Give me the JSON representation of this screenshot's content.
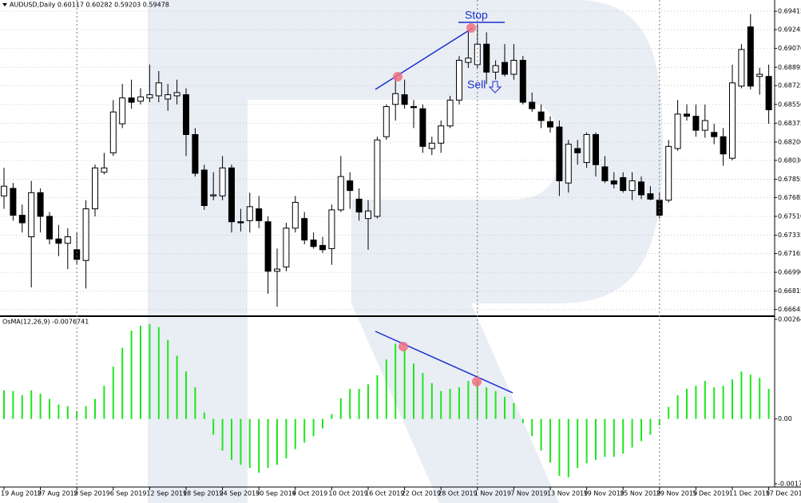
{
  "chart_data": [
    {
      "type": "candlestick",
      "title": "AUDUSD,Daily  0.60117 0.60282 0.59203 0.59478",
      "annotations": [
        "Stop",
        "Sell"
      ],
      "up_color": "#ffffff",
      "down_color": "#000000",
      "ylim": [
        0.6659,
        0.6952
      ],
      "yticks": [
        0.69415,
        0.69245,
        {
          "value": 0.6907,
          "label": "0.69070"
        },
        0.68895,
        0.68725,
        {
          "value": 0.6855,
          "label": "0.68550"
        },
        0.68375,
        {
          "value": 0.682,
          "label": "0.68200"
        },
        {
          "value": 0.6803,
          "label": "0.68030"
        },
        0.67855,
        0.67685,
        {
          "value": 0.6751,
          "label": "0.67510"
        },
        0.67335,
        0.67165,
        {
          "value": 0.6699,
          "label": "0.66990"
        },
        0.66815,
        0.66645
      ],
      "open": [
        0.677,
        0.6777,
        0.6752,
        0.6732,
        0.6773,
        0.6751,
        0.673,
        0.6726,
        0.672,
        0.671,
        0.6758,
        0.6792,
        0.681,
        0.6837,
        0.6861,
        0.6858,
        0.6861,
        0.6863,
        0.686,
        0.6863,
        0.6864,
        0.6827,
        0.6794,
        0.677,
        0.677,
        0.6796,
        0.6746,
        0.6747,
        0.6758,
        0.6746,
        0.67,
        0.6704,
        0.674,
        0.6749,
        0.6729,
        0.6724,
        0.6721,
        0.6757,
        0.6784,
        0.6767,
        0.6749,
        0.6751,
        0.6825,
        0.6855,
        0.6864,
        0.6853,
        0.6851,
        0.6814,
        0.6819,
        0.6835,
        0.6859,
        0.6894,
        0.6892,
        0.6911,
        0.6885,
        0.6894,
        0.6883,
        0.6896,
        0.6857,
        0.6848,
        0.6839,
        0.6834,
        0.6782,
        0.6814,
        0.6801,
        0.6827,
        0.6797,
        0.6784,
        0.6787,
        0.6775,
        0.6783,
        0.6772,
        0.6766,
        0.6766,
        0.6814,
        0.6846,
        0.6844,
        0.6831,
        0.6829,
        0.6825,
        0.6805,
        0.6872,
        0.6927,
        0.6881,
        0.6881
      ],
      "high": [
        0.6796,
        0.6782,
        0.6762,
        0.6784,
        0.6777,
        0.6755,
        0.6743,
        0.674,
        0.6736,
        0.6766,
        0.6799,
        0.681,
        0.6859,
        0.6874,
        0.6878,
        0.687,
        0.6892,
        0.6886,
        0.6874,
        0.6878,
        0.687,
        0.6833,
        0.6799,
        0.6792,
        0.6807,
        0.6799,
        0.6758,
        0.6773,
        0.677,
        0.6751,
        0.6721,
        0.6745,
        0.677,
        0.6755,
        0.6736,
        0.6732,
        0.6762,
        0.6807,
        0.6792,
        0.6777,
        0.6766,
        0.6825,
        0.6855,
        0.6881,
        0.6878,
        0.6859,
        0.6855,
        0.6825,
        0.684,
        0.6863,
        0.69,
        0.6924,
        0.693,
        0.6922,
        0.6896,
        0.6911,
        0.6911,
        0.69,
        0.6866,
        0.6855,
        0.6844,
        0.684,
        0.6822,
        0.6822,
        0.6829,
        0.6829,
        0.6807,
        0.6792,
        0.6792,
        0.6792,
        0.6788,
        0.6779,
        0.6773,
        0.6822,
        0.6859,
        0.6855,
        0.6855,
        0.6855,
        0.6837,
        0.6833,
        0.6892,
        0.6911,
        0.6939,
        0.6889,
        0.6892
      ],
      "low": [
        0.6758,
        0.6747,
        0.6736,
        0.6685,
        0.6736,
        0.6725,
        0.6714,
        0.6702,
        0.6706,
        0.6684,
        0.6751,
        0.679,
        0.6807,
        0.6833,
        0.6851,
        0.6855,
        0.6857,
        0.6857,
        0.6849,
        0.6855,
        0.6807,
        0.6788,
        0.6757,
        0.6766,
        0.6766,
        0.6736,
        0.6737,
        0.6736,
        0.674,
        0.6679,
        0.6667,
        0.67,
        0.6736,
        0.6725,
        0.6721,
        0.6717,
        0.6706,
        0.6755,
        0.6758,
        0.6747,
        0.672,
        0.6749,
        0.6822,
        0.684,
        0.6851,
        0.6833,
        0.681,
        0.6808,
        0.681,
        0.6833,
        0.6855,
        0.6889,
        0.6889,
        0.6874,
        0.6878,
        0.6881,
        0.6878,
        0.6855,
        0.6848,
        0.6833,
        0.6829,
        0.677,
        0.6773,
        0.6799,
        0.6796,
        0.6788,
        0.6782,
        0.6777,
        0.6773,
        0.6766,
        0.6767,
        0.6766,
        0.6749,
        0.6764,
        0.6812,
        0.684,
        0.6825,
        0.6824,
        0.6818,
        0.6798,
        0.6803,
        0.687,
        0.6869,
        0.6864,
        0.6837
      ],
      "close": [
        0.6779,
        0.6752,
        0.6745,
        0.6773,
        0.6751,
        0.673,
        0.6726,
        0.6732,
        0.6711,
        0.6758,
        0.6796,
        0.6796,
        0.6848,
        0.6861,
        0.6857,
        0.6862,
        0.6864,
        0.6875,
        0.6864,
        0.6866,
        0.6827,
        0.6791,
        0.6761,
        0.6771,
        0.6796,
        0.6746,
        0.6745,
        0.676,
        0.6747,
        0.67,
        0.6702,
        0.674,
        0.6764,
        0.6729,
        0.6723,
        0.672,
        0.6757,
        0.6788,
        0.6775,
        0.6755,
        0.6756,
        0.6822,
        0.6853,
        0.6865,
        0.6855,
        0.6852,
        0.6816,
        0.6819,
        0.6835,
        0.6859,
        0.6896,
        0.6898,
        0.6911,
        0.6885,
        0.6891,
        0.6883,
        0.6896,
        0.6857,
        0.6851,
        0.684,
        0.6834,
        0.6784,
        0.6818,
        0.681,
        0.6827,
        0.6799,
        0.6784,
        0.6781,
        0.6775,
        0.6784,
        0.6771,
        0.6767,
        0.6752,
        0.6816,
        0.6846,
        0.6844,
        0.6831,
        0.684,
        0.6825,
        0.6809,
        0.6875,
        0.6906,
        0.6872,
        0.6883,
        0.685
      ]
    },
    {
      "type": "bar",
      "title": "OsMA(12,26,9) -0.0076741",
      "color": "#1ee61e",
      "ylim": [
        -0.00181,
        0.00271
      ],
      "yticks": [
        0.0026447,
        {
          "value": 0,
          "label": "0.00"
        },
        -0.001723
      ],
      "categories": [
        "19 Aug 2019",
        null,
        null,
        null,
        "27 Aug 2019",
        null,
        null,
        null,
        "2 Sep 2019",
        null,
        null,
        null,
        "6 Sep 2019",
        null,
        null,
        null,
        "12 Sep 2019",
        null,
        null,
        null,
        "18 Sep 2019",
        null,
        null,
        null,
        "24 Sep 2019",
        null,
        null,
        null,
        "30 Sep 2019",
        null,
        null,
        null,
        "4 Oct 2019",
        null,
        null,
        null,
        "10 Oct 2019",
        null,
        null,
        null,
        "16 Oct 2019",
        null,
        null,
        null,
        "22 Oct 2019",
        null,
        null,
        null,
        "28 Oct 2019",
        null,
        null,
        null,
        "1 Nov 2019",
        null,
        null,
        null,
        "7 Nov 2019",
        null,
        null,
        null,
        "13 Nov 2019",
        null,
        null,
        null,
        "19 Nov 2019",
        null,
        null,
        null,
        "25 Nov 2019",
        null,
        null,
        null,
        "29 Nov 2019",
        null,
        null,
        null,
        "5 Dec 2019",
        null,
        null,
        null,
        "11 Dec 2019",
        null,
        null,
        null,
        "17 Dec 2019"
      ],
      "values": [
        0.00076,
        0.00074,
        0.00063,
        0.00076,
        0.00067,
        0.00053,
        0.00038,
        0.00034,
        0.00021,
        0.00034,
        0.00053,
        0.00088,
        0.00139,
        0.00189,
        0.00235,
        0.00248,
        0.00252,
        0.00244,
        0.0021,
        0.00168,
        0.00126,
        0.00084,
        0.00017,
        -0.00042,
        -0.00084,
        -0.00109,
        -0.00122,
        -0.0013,
        -0.00143,
        -0.0013,
        -0.00122,
        -0.00105,
        -0.0008,
        -0.00063,
        -0.00046,
        -0.00025,
        0.00013,
        0.00055,
        0.0008,
        0.0008,
        0.00092,
        0.00116,
        0.00158,
        0.002,
        0.00185,
        0.00147,
        0.00122,
        0.00095,
        0.00074,
        0.0008,
        0.00084,
        0.00101,
        0.00101,
        0.00084,
        0.00074,
        0.00059,
        0.00042,
        -0.00011,
        -0.00046,
        -0.00084,
        -0.00116,
        -0.00151,
        -0.00155,
        -0.0013,
        -0.00118,
        -0.00109,
        -0.00101,
        -0.00101,
        -0.00092,
        -0.00076,
        -0.00059,
        -0.00042,
        -0.00017,
        0.00032,
        0.00063,
        0.0008,
        0.00088,
        0.00101,
        0.00084,
        0.00088,
        0.00105,
        0.00126,
        0.00118,
        0.00109,
        0.0008
      ]
    }
  ]
}
